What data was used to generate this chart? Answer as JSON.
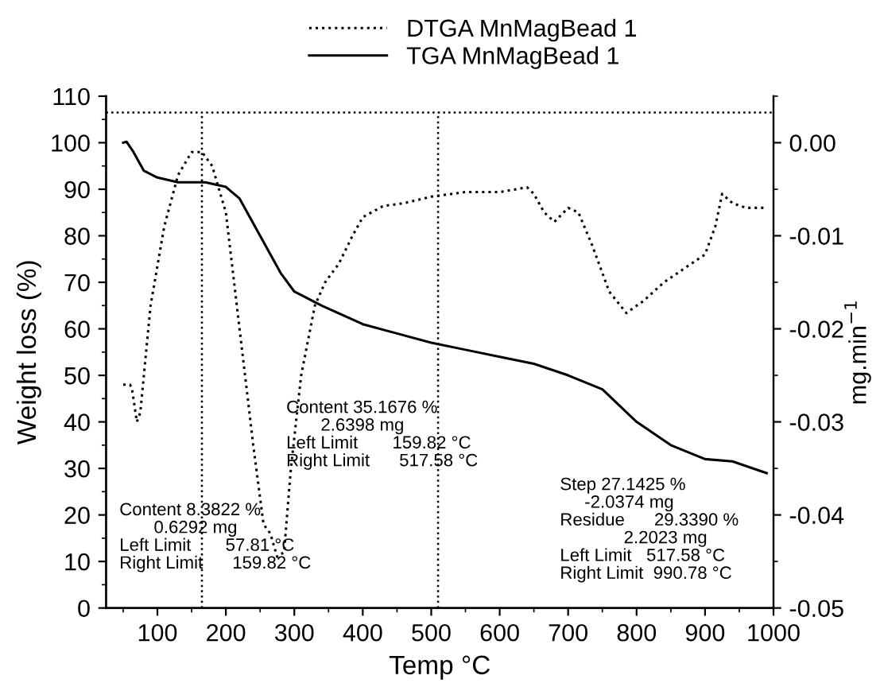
{
  "chart_data": {
    "type": "line",
    "xlabel": "Temp °C",
    "ylabel": "Weight loss (%)",
    "y2label": "mg.min$^{−1}$",
    "xlim": [
      25,
      1000
    ],
    "xticks": [
      100,
      200,
      300,
      400,
      500,
      600,
      700,
      800,
      900,
      1000
    ],
    "ylim": [
      0,
      110
    ],
    "yticks": [
      0,
      10,
      20,
      30,
      40,
      50,
      60,
      70,
      80,
      90,
      100,
      110
    ],
    "y2lim": [
      -0.05,
      0.005
    ],
    "y2ticks": [
      {
        "value": -0.05,
        "label": "-0.05"
      },
      {
        "value": -0.04,
        "label": "-0.04"
      },
      {
        "value": -0.03,
        "label": "-0.03"
      },
      {
        "value": -0.02,
        "label": "-0.02"
      },
      {
        "value": -0.01,
        "label": "-0.01"
      },
      {
        "value": 0.0,
        "label": "0.00"
      }
    ],
    "legend": "top",
    "grid": false,
    "series": [
      {
        "name": "DTGA MnMagBead 1",
        "color": "#000000",
        "axis": "y2",
        "line_style": "dotted",
        "x": [
          50,
          60,
          63,
          70,
          75,
          90,
          110,
          130,
          150,
          165,
          180,
          200,
          220,
          240,
          255,
          265,
          275,
          285,
          295,
          310,
          330,
          345,
          365,
          385,
          400,
          430,
          460,
          500,
          550,
          600,
          640,
          650,
          665,
          680,
          700,
          715,
          735,
          760,
          785,
          810,
          840,
          870,
          900,
          915,
          925,
          940,
          960,
          990
        ],
        "values": [
          -0.026,
          -0.026,
          -0.0265,
          -0.03,
          -0.029,
          -0.0175,
          -0.009,
          -0.0035,
          -0.001,
          -0.001,
          -0.0025,
          -0.0075,
          -0.02,
          -0.0325,
          -0.041,
          -0.042,
          -0.0445,
          -0.044,
          -0.035,
          -0.025,
          -0.0175,
          -0.015,
          -0.013,
          -0.01,
          -0.008,
          -0.0068,
          -0.0065,
          -0.0058,
          -0.0053,
          -0.0053,
          -0.0048,
          -0.0055,
          -0.0075,
          -0.0085,
          -0.007,
          -0.0075,
          -0.011,
          -0.016,
          -0.0183,
          -0.017,
          -0.015,
          -0.0135,
          -0.012,
          -0.009,
          -0.0055,
          -0.0065,
          -0.007,
          -0.007
        ]
      },
      {
        "name": "TGA MnMagBead 1",
        "color": "#000000",
        "line_style": "solid",
        "x": [
          50,
          55,
          65,
          80,
          100,
          130,
          170,
          200,
          220,
          250,
          280,
          300,
          340,
          400,
          450,
          500,
          550,
          600,
          650,
          700,
          750,
          800,
          850,
          900,
          940,
          990
        ],
        "values": [
          100,
          100.2,
          98,
          94,
          92.5,
          91.5,
          91.5,
          90.5,
          88,
          80,
          72,
          68,
          65,
          61,
          59,
          57,
          55.5,
          54,
          52.5,
          50,
          47,
          40,
          35,
          32,
          31.5,
          29
        ]
      }
    ],
    "ref_lines": [
      {
        "axis": "y",
        "value": 106.5,
        "line_style": "dotted",
        "color": "#000000"
      },
      {
        "axis": "x",
        "value": 165,
        "line_style": "dotted",
        "color": "#000000"
      },
      {
        "axis": "x",
        "value": 510,
        "line_style": "dotted",
        "color": "#000000"
      }
    ],
    "annotations": [
      "Content 8.3822 %\n       0.6292 mg\nLeft Limit       57.81 °C\nRight Limit      159.82 °C",
      "Content 35.1676 %\n       2.6398 mg\nLeft Limit       159.82 °C\nRight Limit      517.58 °C",
      "Step 27.1425 %\n     -2.0374 mg\nResidue      29.3390 %\n             2.2023 mg\nLeft Limit   517.58 °C\nRight Limit  990.78 °C"
    ]
  }
}
